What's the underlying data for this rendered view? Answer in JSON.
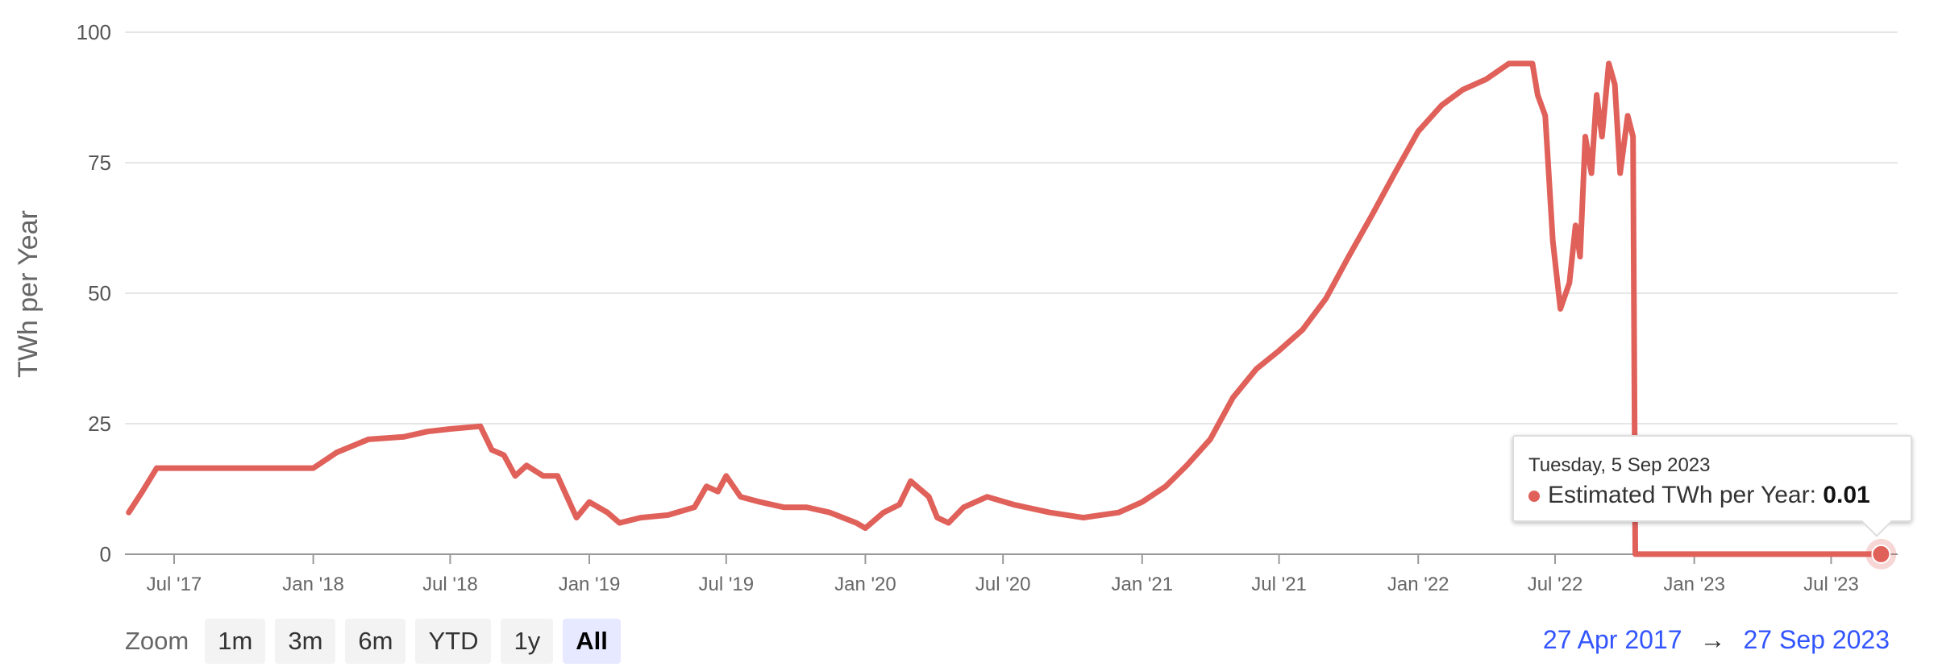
{
  "chart_data": {
    "type": "line",
    "ylabel": "TWh per Year",
    "xlabel": "",
    "ylim": [
      0,
      100
    ],
    "yticks": [
      0,
      25,
      50,
      75,
      100
    ],
    "xlim": [
      "2017-04-27",
      "2023-09-27"
    ],
    "xticks": [
      {
        "date": "2017-07-01",
        "label": "Jul '17"
      },
      {
        "date": "2018-01-01",
        "label": "Jan '18"
      },
      {
        "date": "2018-07-01",
        "label": "Jul '18"
      },
      {
        "date": "2019-01-01",
        "label": "Jan '19"
      },
      {
        "date": "2019-07-01",
        "label": "Jul '19"
      },
      {
        "date": "2020-01-01",
        "label": "Jan '20"
      },
      {
        "date": "2020-07-01",
        "label": "Jul '20"
      },
      {
        "date": "2021-01-01",
        "label": "Jan '21"
      },
      {
        "date": "2021-07-01",
        "label": "Jul '21"
      },
      {
        "date": "2022-01-01",
        "label": "Jan '22"
      },
      {
        "date": "2022-07-01",
        "label": "Jul '22"
      },
      {
        "date": "2023-01-01",
        "label": "Jan '23"
      },
      {
        "date": "2023-07-01",
        "label": "Jul '23"
      }
    ],
    "grid": true,
    "series": [
      {
        "name": "Estimated TWh per Year",
        "color": "#e0605a",
        "points": [
          [
            "2017-05-02",
            8
          ],
          [
            "2017-05-20",
            12
          ],
          [
            "2017-06-08",
            16.5
          ],
          [
            "2017-07-15",
            16.5
          ],
          [
            "2017-09-01",
            16.5
          ],
          [
            "2017-11-01",
            16.5
          ],
          [
            "2018-01-01",
            16.5
          ],
          [
            "2018-02-01",
            19.5
          ],
          [
            "2018-03-15",
            22
          ],
          [
            "2018-05-01",
            22.5
          ],
          [
            "2018-06-01",
            23.5
          ],
          [
            "2018-07-01",
            24
          ],
          [
            "2018-08-10",
            24.5
          ],
          [
            "2018-08-25",
            20
          ],
          [
            "2018-09-10",
            19
          ],
          [
            "2018-09-25",
            15
          ],
          [
            "2018-10-10",
            17
          ],
          [
            "2018-11-01",
            15
          ],
          [
            "2018-11-20",
            15
          ],
          [
            "2018-12-15",
            7
          ],
          [
            "2019-01-01",
            10
          ],
          [
            "2019-01-25",
            8
          ],
          [
            "2019-02-10",
            6
          ],
          [
            "2019-03-10",
            7
          ],
          [
            "2019-04-15",
            7.5
          ],
          [
            "2019-05-20",
            9
          ],
          [
            "2019-06-05",
            13
          ],
          [
            "2019-06-20",
            12
          ],
          [
            "2019-07-01",
            15
          ],
          [
            "2019-07-20",
            11
          ],
          [
            "2019-08-15",
            10
          ],
          [
            "2019-09-15",
            9
          ],
          [
            "2019-10-15",
            9
          ],
          [
            "2019-11-15",
            8
          ],
          [
            "2019-12-20",
            6
          ],
          [
            "2020-01-01",
            5
          ],
          [
            "2020-01-25",
            8
          ],
          [
            "2020-02-15",
            9.5
          ],
          [
            "2020-03-01",
            14
          ],
          [
            "2020-03-25",
            11
          ],
          [
            "2020-04-05",
            7
          ],
          [
            "2020-04-20",
            6
          ],
          [
            "2020-05-10",
            9
          ],
          [
            "2020-06-10",
            11
          ],
          [
            "2020-07-15",
            9.5
          ],
          [
            "2020-09-01",
            8
          ],
          [
            "2020-10-15",
            7
          ],
          [
            "2020-12-01",
            8
          ],
          [
            "2021-01-01",
            10
          ],
          [
            "2021-02-01",
            13
          ],
          [
            "2021-03-01",
            17
          ],
          [
            "2021-04-01",
            22
          ],
          [
            "2021-05-01",
            30
          ],
          [
            "2021-06-01",
            35.5
          ],
          [
            "2021-07-01",
            39
          ],
          [
            "2021-08-01",
            43
          ],
          [
            "2021-09-01",
            49
          ],
          [
            "2021-10-01",
            57
          ],
          [
            "2021-11-01",
            65
          ],
          [
            "2021-12-01",
            73
          ],
          [
            "2022-01-01",
            81
          ],
          [
            "2022-02-01",
            86
          ],
          [
            "2022-03-01",
            89
          ],
          [
            "2022-04-01",
            91
          ],
          [
            "2022-05-01",
            94
          ],
          [
            "2022-06-01",
            94
          ],
          [
            "2022-06-08",
            88
          ],
          [
            "2022-06-18",
            84
          ],
          [
            "2022-06-28",
            60
          ],
          [
            "2022-07-08",
            47
          ],
          [
            "2022-07-20",
            52
          ],
          [
            "2022-07-28",
            63
          ],
          [
            "2022-08-03",
            57
          ],
          [
            "2022-08-10",
            80
          ],
          [
            "2022-08-18",
            73
          ],
          [
            "2022-08-25",
            88
          ],
          [
            "2022-09-01",
            80
          ],
          [
            "2022-09-10",
            94
          ],
          [
            "2022-09-18",
            90
          ],
          [
            "2022-09-25",
            73
          ],
          [
            "2022-10-05",
            84
          ],
          [
            "2022-10-12",
            80
          ],
          [
            "2022-10-15",
            0.01
          ],
          [
            "2022-12-01",
            0.01
          ],
          [
            "2023-03-01",
            0.01
          ],
          [
            "2023-06-01",
            0.01
          ],
          [
            "2023-09-05",
            0.01
          ]
        ]
      }
    ],
    "highlight_point": {
      "date": "2023-09-05",
      "value": 0.01
    }
  },
  "tooltip": {
    "date": "Tuesday, 5 Sep 2023",
    "series_name": "Estimated TWh per Year",
    "separator": ":",
    "value": "0.01"
  },
  "zoom": {
    "label": "Zoom",
    "buttons": [
      "1m",
      "3m",
      "6m",
      "YTD",
      "1y",
      "All"
    ],
    "selected": "All"
  },
  "range": {
    "from": "27 Apr 2017",
    "arrow": "→",
    "to": "27 Sep 2023"
  }
}
